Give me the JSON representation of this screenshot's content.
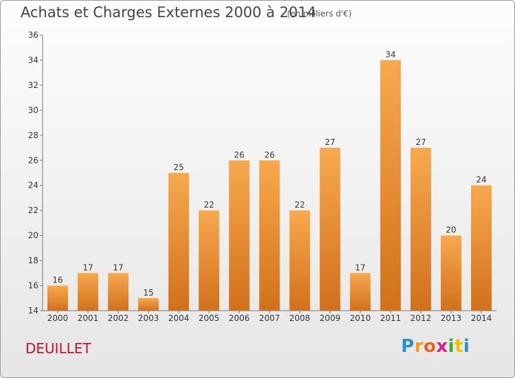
{
  "header": {
    "title": "Achats et Charges Externes 2000 à 2014",
    "subtitle": "(en milliers d'€)"
  },
  "footer": {
    "commune": "DEUILLET",
    "logo_text": "Proxiti",
    "logo_colors": [
      "#2a8fcf",
      "#f29b1c",
      "#e8632b",
      "#d6208a",
      "#3aa835",
      "#f2c100",
      "#2a8fcf"
    ]
  },
  "chart_data": {
    "type": "bar",
    "categories": [
      "2000",
      "2001",
      "2002",
      "2003",
      "2004",
      "2005",
      "2006",
      "2007",
      "2008",
      "2009",
      "2010",
      "2011",
      "2012",
      "2013",
      "2014"
    ],
    "values": [
      16,
      17,
      17,
      15,
      25,
      22,
      26,
      26,
      22,
      27,
      17,
      34,
      27,
      20,
      24
    ],
    "ylim": [
      14,
      36
    ],
    "yticks": [
      14,
      16,
      18,
      20,
      22,
      24,
      26,
      28,
      30,
      32,
      34,
      36
    ],
    "grid": false,
    "bar_color_top": "#f7a94f",
    "bar_color_bottom": "#d2701b"
  }
}
